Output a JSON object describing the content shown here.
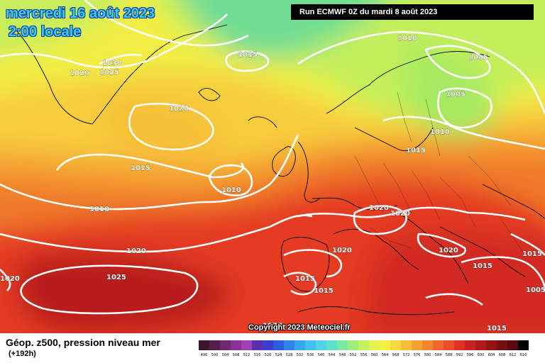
{
  "header": {
    "date": "mercredi 16 août 2023",
    "time": "2:00 locale",
    "run": "Run ECMWF 0Z du mardi 8 août 2023"
  },
  "copyright": "Copyright 2023 Meteociel.fr",
  "footer": {
    "title": "Géop. z500, pression niveau mer",
    "subtitle": "(+192h)"
  },
  "isobar_labels": [
    "1015",
    "1010",
    "1005",
    "1030",
    "1025",
    "1020",
    "1020",
    "1005",
    "1010",
    "1015",
    "1015",
    "1010",
    "1010",
    "1020",
    "1020",
    "1020",
    "1020",
    "1020",
    "1020",
    "1025",
    "1015",
    "1015",
    "1015",
    "1005",
    "1015",
    "1020",
    "1015"
  ],
  "scale": {
    "values": [
      "496",
      "500",
      "504",
      "508",
      "512",
      "516",
      "520",
      "524",
      "528",
      "532",
      "536",
      "540",
      "544",
      "548",
      "552",
      "556",
      "560",
      "564",
      "568",
      "572",
      "576",
      "580",
      "584",
      "588",
      "592",
      "596",
      "600",
      "604",
      "608",
      "612",
      "616"
    ],
    "colors": [
      "#3c1530",
      "#52204a",
      "#6e2a70",
      "#8b2f99",
      "#a13fb3",
      "#5a2fb0",
      "#3b3fc7",
      "#2a5fd9",
      "#2f85e6",
      "#36a6ee",
      "#3fc0f0",
      "#52d2e6",
      "#5fe0c8",
      "#7cea9f",
      "#9ef07a",
      "#c2f260",
      "#e4f44d",
      "#f5ef45",
      "#f8d83f",
      "#f7bd39",
      "#f5a133",
      "#f2852e",
      "#ee6a2a",
      "#e84e27",
      "#de3324",
      "#c92222",
      "#b01a1a",
      "#931414",
      "#760f12",
      "#5a0a0e",
      "#000000"
    ]
  }
}
